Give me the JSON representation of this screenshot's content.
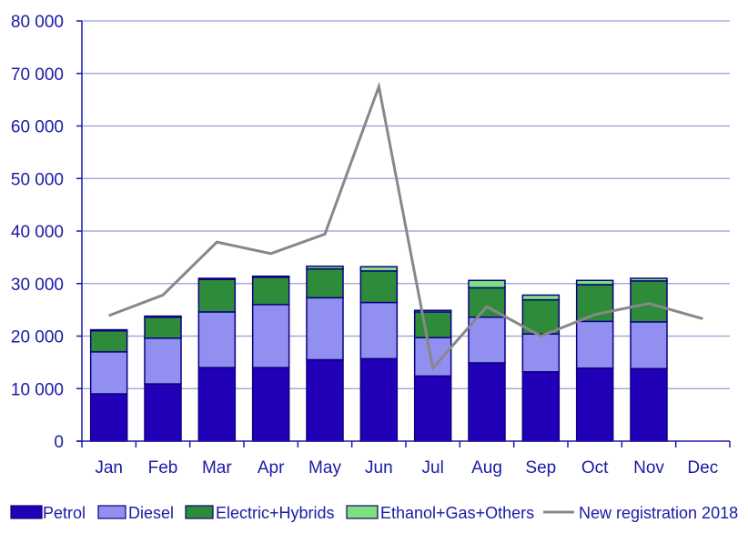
{
  "chart_data": {
    "type": "bar",
    "stacked": true,
    "categories": [
      "Jan",
      "Feb",
      "Mar",
      "Apr",
      "May",
      "Jun",
      "Jul",
      "Aug",
      "Sep",
      "Oct",
      "Nov",
      "Dec"
    ],
    "ylim": [
      0,
      80000
    ],
    "yticks": [
      0,
      10000,
      20000,
      30000,
      40000,
      50000,
      60000,
      70000,
      80000
    ],
    "ytick_labels": [
      "0",
      "10 000",
      "20 000",
      "30 000",
      "40 000",
      "50 000",
      "60 000",
      "70 000",
      "80 000"
    ],
    "grid": true,
    "legend_position": "bottom",
    "series": [
      {
        "name": "Petrol",
        "color": "#2200b8",
        "values": [
          9000,
          10900,
          14000,
          14000,
          15500,
          15700,
          12400,
          14900,
          13200,
          13900,
          13800,
          null
        ]
      },
      {
        "name": "Diesel",
        "color": "#9190f0",
        "values": [
          8000,
          8700,
          10600,
          12000,
          11800,
          10700,
          7300,
          8700,
          7200,
          8900,
          8900,
          null
        ]
      },
      {
        "name": "Electric+Hybrids",
        "color": "#2e8b3a",
        "values": [
          4000,
          4000,
          6200,
          5200,
          5500,
          6000,
          4900,
          5600,
          6500,
          7000,
          7800,
          null
        ]
      },
      {
        "name": "Ethanol+Gas+Others",
        "color": "#7ee07e",
        "values": [
          200,
          200,
          200,
          200,
          500,
          800,
          300,
          1400,
          900,
          800,
          500,
          null
        ]
      }
    ],
    "line_series": {
      "name": "New registration 2018",
      "color": "#888888",
      "values": [
        23900,
        27800,
        37900,
        35700,
        39400,
        67500,
        13900,
        25600,
        20000,
        24100,
        26200,
        23300
      ]
    }
  }
}
